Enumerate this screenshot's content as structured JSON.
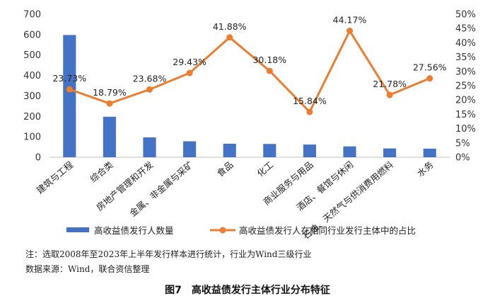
{
  "chart_data": {
    "type": "bar",
    "categories": [
      "建筑与工程",
      "综合类",
      "房地产管理和开发",
      "金属、非金属与采矿",
      "食品",
      "化工",
      "商业服务与用品",
      "酒店、餐馆与休闲",
      "石油、天然气与供消费用燃料",
      "水务"
    ],
    "series": [
      {
        "name": "高收益债发行人数量",
        "type": "bar",
        "axis": "left",
        "color": "#4472c4",
        "values": [
          598,
          198,
          97,
          78,
          66,
          65,
          62,
          53,
          43,
          42
        ]
      },
      {
        "name": "高收益债发行人在相同行业发行主体中的占比",
        "type": "line",
        "axis": "right",
        "color": "#ed7d31",
        "values": [
          23.73,
          18.79,
          23.68,
          29.43,
          41.88,
          30.18,
          15.84,
          44.17,
          21.78,
          27.56
        ],
        "labels": [
          "23.73%",
          "18.79%",
          "23.68%",
          "29.43%",
          "41.88%",
          "30.18%",
          "15.84%",
          "44.17%",
          "21.78%",
          "27.56%"
        ]
      }
    ],
    "y_left": {
      "min": 0,
      "max": 700,
      "ticks": [
        "0",
        "100",
        "200",
        "300",
        "400",
        "500",
        "600",
        "700"
      ]
    },
    "y_right": {
      "min": 0,
      "max": 50,
      "ticks": [
        "0%",
        "5%",
        "10%",
        "15%",
        "20%",
        "25%",
        "30%",
        "35%",
        "40%",
        "45%",
        "50%"
      ]
    },
    "grid": false,
    "legend_position": "bottom"
  },
  "notes": {
    "note1": "注：选取2008年至2023年上半年发行样本进行统计，行业为Wind三级行业",
    "note2": "数据来源：Wind，联合资信整理"
  },
  "caption": "图7　高收益债发行主体行业分布特征"
}
